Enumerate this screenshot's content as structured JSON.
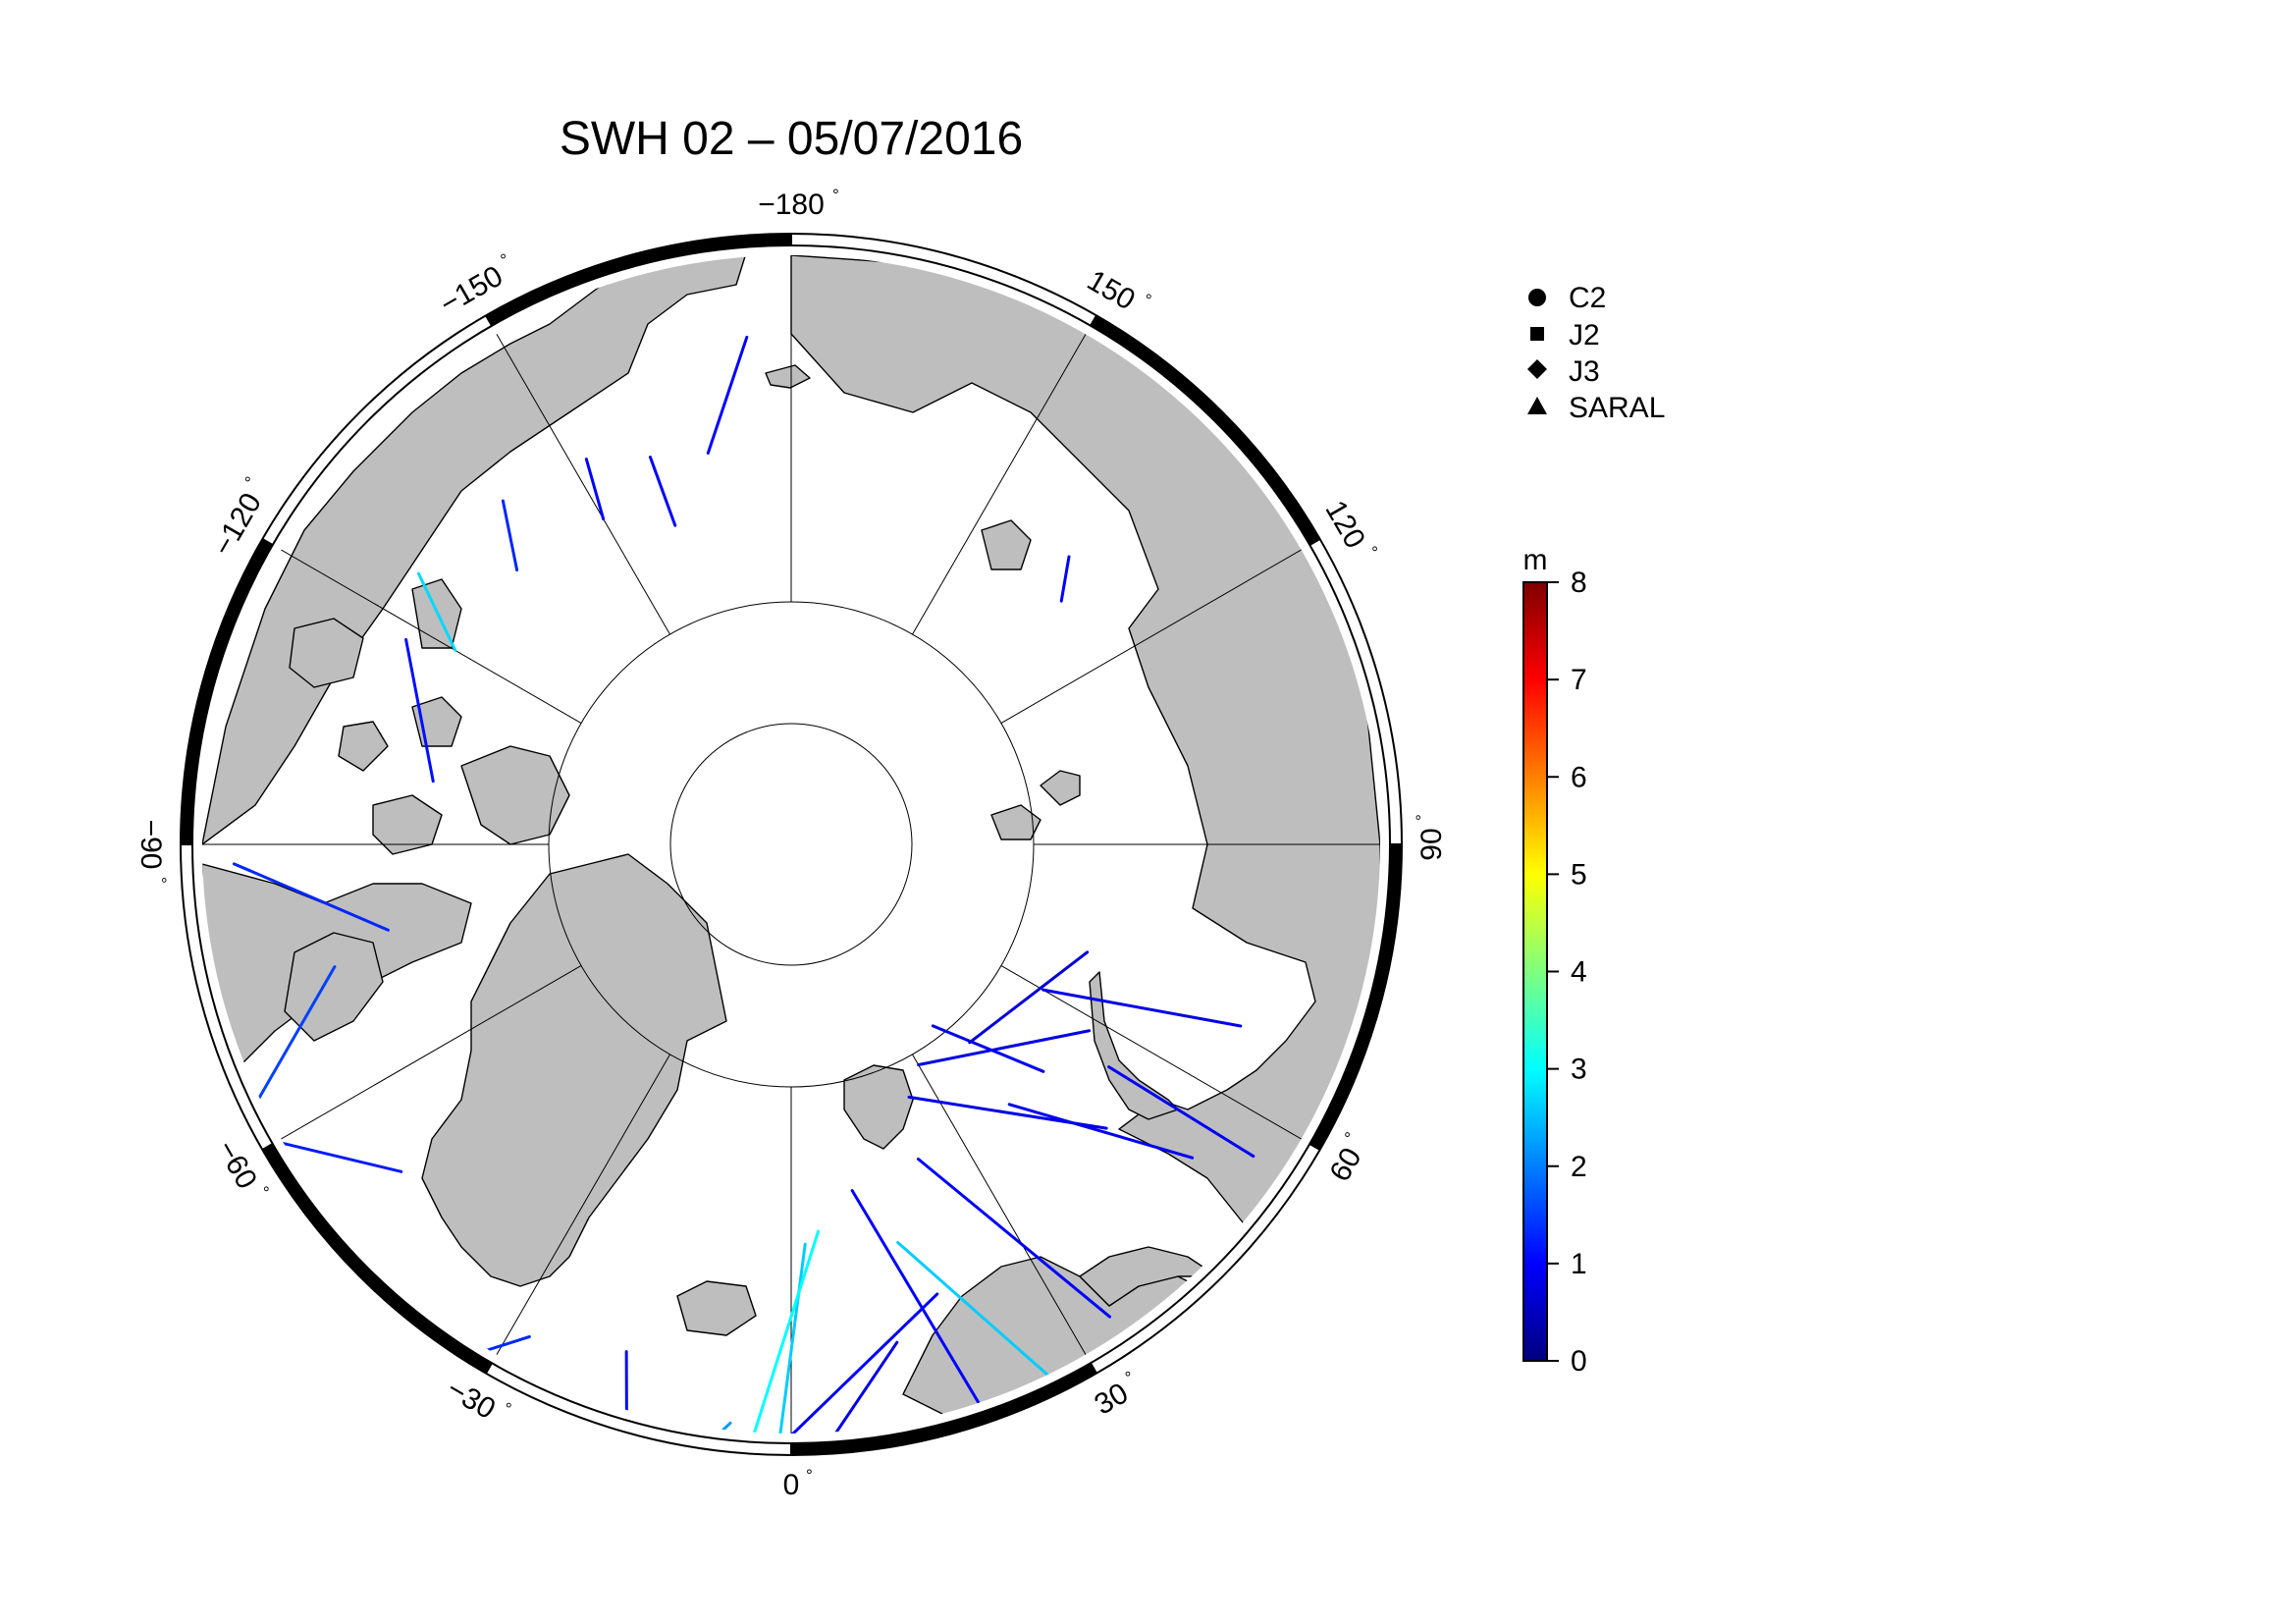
{
  "title": "SWH 02 – 05/07/2016",
  "map": {
    "projection": "north-polar-stereographic",
    "ocean_color": "#ffffff",
    "land_color": "#bebebe",
    "graticule_latitudes": [
      70,
      80
    ],
    "graticule_longitudes": [
      -180,
      -150,
      -120,
      -90,
      -60,
      -30,
      0,
      30,
      60,
      90,
      120,
      150
    ],
    "frame_labels": [
      {
        "text": "-180",
        "lon": 180
      },
      {
        "text": "150",
        "lon": 150
      },
      {
        "text": "120",
        "lon": 120
      },
      {
        "text": "90",
        "lon": 90
      },
      {
        "text": "60",
        "lon": 60
      },
      {
        "text": "30",
        "lon": 30
      },
      {
        "text": "0",
        "lon": 0
      },
      {
        "text": "-30",
        "lon": -30
      },
      {
        "text": "-60",
        "lon": -60
      },
      {
        "text": "-90",
        "lon": -90
      },
      {
        "text": "-120",
        "lon": -120
      },
      {
        "text": "-150",
        "lon": -150
      }
    ]
  },
  "legend": {
    "items": [
      {
        "label": "C2",
        "symbol": "circle"
      },
      {
        "label": "J2",
        "symbol": "square"
      },
      {
        "label": "J3",
        "symbol": "diamond"
      },
      {
        "label": "SARAL",
        "symbol": "triangle"
      }
    ]
  },
  "colorbar": {
    "unit": "m",
    "min": 0,
    "max": 8,
    "ticks": [
      "0",
      "1",
      "2",
      "3",
      "4",
      "5",
      "6",
      "7",
      "8"
    ],
    "colormap": "jet"
  },
  "chart_data": {
    "type": "scatter",
    "title": "SWH 02 – 05/07/2016",
    "series": [
      {
        "name": "C2",
        "values": []
      },
      {
        "name": "J2",
        "values": []
      },
      {
        "name": "J3",
        "values": []
      },
      {
        "name": "SARAL",
        "values": []
      }
    ],
    "colorbar": {
      "label": "m",
      "range": [
        0,
        8
      ]
    },
    "tracks": [
      {
        "from": [
          18,
          70.5
        ],
        "to": [
          -8,
          61.5
        ],
        "swh": 1.0
      },
      {
        "from": [
          12,
          69.0
        ],
        "to": [
          -2,
          61.5
        ],
        "swh": 0.8
      },
      {
        "from": [
          2,
          73.5
        ],
        "to": [
          -2,
          61.5
        ],
        "swh": 2.6
      },
      {
        "from": [
          4,
          74.0
        ],
        "to": [
          -5,
          63.0
        ],
        "swh": 3.0
      },
      {
        "from": [
          -6,
          66.0
        ],
        "to": [
          -12,
          62.5
        ],
        "swh": 2.2
      },
      {
        "from": [
          10,
          75.5
        ],
        "to": [
          20,
          62.5
        ],
        "swh": 1.0
      },
      {
        "from": [
          15,
          73.0
        ],
        "to": [
          26,
          65.5
        ],
        "swh": 2.6
      },
      {
        "from": [
          22,
          76.0
        ],
        "to": [
          34,
          66.5
        ],
        "swh": 1.0
      },
      {
        "from": [
          40,
          76.0
        ],
        "to": [
          52,
          69.0
        ],
        "swh": 0.9
      },
      {
        "from": [
          55,
          74.0
        ],
        "to": [
          56,
          67.0
        ],
        "swh": 0.9
      },
      {
        "from": [
          60,
          78.0
        ],
        "to": [
          68,
          70.0
        ],
        "swh": 0.8
      },
      {
        "from": [
          38,
          80.5
        ],
        "to": [
          48,
          76.0
        ],
        "swh": 0.9
      },
      {
        "from": [
          25,
          78.5
        ],
        "to": [
          48,
          72.5
        ],
        "swh": 0.8
      },
      {
        "from": [
          30,
          79.5
        ],
        "to": [
          58,
          75.5
        ],
        "swh": 0.8
      },
      {
        "from": [
          42,
          79.0
        ],
        "to": [
          70,
          77.0
        ],
        "swh": 0.7
      },
      {
        "from": [
          -50,
          69.0
        ],
        "to": [
          -63,
          64.0
        ],
        "swh": 1.2
      },
      {
        "from": [
          -75,
          70.5
        ],
        "to": [
          -62,
          64.0
        ],
        "swh": 1.5
      },
      {
        "from": [
          -78,
          73.0
        ],
        "to": [
          -88,
          67.0
        ],
        "swh": 1.3
      },
      {
        "from": [
          -100,
          75.0
        ],
        "to": [
          -118,
          72.0
        ],
        "swh": 1.1
      },
      {
        "from": [
          -135,
          74.0
        ],
        "to": [
          -140,
          71.5
        ],
        "swh": 1.3
      },
      {
        "from": [
          -150,
          74.5
        ],
        "to": [
          -152,
          72.0
        ],
        "swh": 1.0
      },
      {
        "from": [
          -160,
          76.0
        ],
        "to": [
          -160,
          73.0
        ],
        "swh": 1.0
      },
      {
        "from": [
          -168,
          73.5
        ],
        "to": [
          -175,
          69.0
        ],
        "swh": 1.0
      },
      {
        "from": [
          -120,
          74.0
        ],
        "to": [
          -126,
          71.0
        ],
        "swh": 2.7
      },
      {
        "from": [
          -28,
          67.0
        ],
        "to": [
          -35,
          63.5
        ],
        "swh": 1.3
      },
      {
        "from": [
          -18,
          68.0
        ],
        "to": [
          -14,
          62.0
        ],
        "swh": 1.1
      },
      {
        "from": [
          132,
          75.0
        ],
        "to": [
          136,
          73.5
        ],
        "swh": 1.0
      }
    ]
  }
}
